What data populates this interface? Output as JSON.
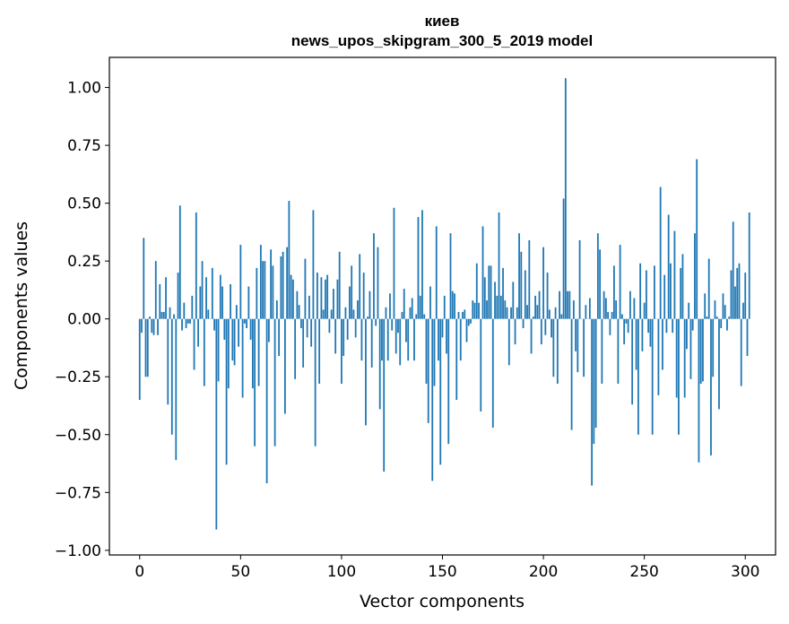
{
  "chart_data": {
    "type": "bar",
    "title": "киев",
    "subtitle": "news_upos_skipgram_300_5_2019 model",
    "xlabel": "Vector components",
    "ylabel": "Components values",
    "xlim": [
      -15,
      315
    ],
    "ylim": [
      -1.02,
      1.13
    ],
    "xticks": [
      0,
      50,
      100,
      150,
      200,
      250,
      300
    ],
    "xtick_labels": [
      "0",
      "50",
      "100",
      "150",
      "200",
      "250",
      "300"
    ],
    "yticks": [
      1.0,
      0.75,
      0.5,
      0.25,
      0.0,
      -0.25,
      -0.5,
      -0.75,
      -1.0
    ],
    "ytick_labels": [
      "1.00",
      "0.75",
      "0.50",
      "0.25",
      "0.00",
      "−0.25",
      "−0.50",
      "−0.75",
      "−1.00"
    ],
    "bar_color": "#1f77b4",
    "values": [
      -0.35,
      -0.06,
      0.35,
      -0.25,
      -0.25,
      0.01,
      -0.06,
      -0.07,
      0.25,
      -0.07,
      0.15,
      0.03,
      0.03,
      0.18,
      -0.37,
      0.05,
      -0.5,
      0.02,
      -0.61,
      0.2,
      0.49,
      -0.05,
      0.07,
      -0.04,
      -0.02,
      -0.02,
      0.1,
      -0.22,
      0.46,
      -0.12,
      0.14,
      0.25,
      -0.29,
      0.18,
      0.04,
      0.0,
      0.22,
      -0.05,
      -0.91,
      -0.27,
      0.19,
      0.14,
      -0.09,
      -0.63,
      -0.3,
      0.15,
      -0.18,
      -0.2,
      0.06,
      -0.12,
      0.32,
      -0.34,
      -0.02,
      -0.04,
      0.14,
      -0.09,
      -0.3,
      -0.55,
      0.22,
      -0.29,
      0.32,
      0.25,
      0.25,
      -0.71,
      -0.1,
      0.3,
      0.23,
      -0.55,
      0.08,
      -0.16,
      0.27,
      0.29,
      -0.41,
      0.31,
      0.51,
      0.19,
      0.17,
      -0.26,
      0.12,
      0.06,
      -0.04,
      -0.21,
      0.26,
      -0.08,
      0.1,
      -0.12,
      0.47,
      -0.55,
      0.2,
      -0.28,
      0.18,
      0.04,
      0.17,
      0.19,
      -0.06,
      0.04,
      0.13,
      -0.15,
      0.17,
      0.29,
      -0.28,
      -0.16,
      0.05,
      -0.09,
      0.14,
      0.23,
      0.04,
      -0.08,
      0.08,
      0.28,
      -0.18,
      0.2,
      -0.46,
      0.01,
      0.12,
      -0.21,
      0.37,
      -0.03,
      0.31,
      -0.39,
      -0.18,
      -0.66,
      0.05,
      -0.18,
      0.11,
      -0.05,
      0.48,
      -0.15,
      -0.06,
      -0.2,
      0.03,
      0.13,
      -0.1,
      -0.18,
      0.05,
      0.09,
      -0.18,
      0.02,
      0.44,
      0.1,
      0.47,
      0.02,
      -0.28,
      -0.45,
      0.14,
      -0.7,
      -0.29,
      0.4,
      -0.18,
      -0.63,
      -0.08,
      0.1,
      -0.15,
      -0.54,
      0.37,
      0.12,
      0.11,
      -0.35,
      0.03,
      -0.18,
      0.03,
      0.04,
      -0.1,
      -0.03,
      -0.02,
      0.08,
      0.07,
      0.24,
      0.07,
      -0.4,
      0.4,
      0.18,
      0.08,
      0.23,
      0.23,
      -0.47,
      0.16,
      0.1,
      0.46,
      0.1,
      0.22,
      0.08,
      0.05,
      -0.2,
      0.05,
      0.16,
      -0.11,
      0.05,
      0.37,
      0.29,
      -0.04,
      0.21,
      0.06,
      0.34,
      -0.15,
      0.01,
      0.1,
      0.06,
      0.12,
      -0.11,
      0.31,
      -0.07,
      0.2,
      0.04,
      -0.08,
      -0.25,
      0.05,
      -0.28,
      0.12,
      0.02,
      0.52,
      1.04,
      0.12,
      0.12,
      -0.48,
      0.08,
      -0.14,
      -0.23,
      0.34,
      0.0,
      -0.25,
      0.06,
      0.0,
      0.09,
      -0.72,
      -0.54,
      -0.47,
      0.37,
      0.3,
      -0.28,
      0.12,
      0.09,
      0.03,
      -0.07,
      0.03,
      0.23,
      0.08,
      -0.28,
      0.32,
      0.02,
      -0.11,
      -0.02,
      -0.06,
      0.12,
      -0.37,
      0.09,
      -0.22,
      -0.5,
      0.24,
      -0.14,
      0.07,
      0.21,
      -0.06,
      -0.12,
      -0.5,
      0.23,
      0.0,
      -0.33,
      0.57,
      -0.22,
      0.19,
      -0.06,
      0.45,
      0.24,
      -0.06,
      0.38,
      -0.34,
      -0.5,
      0.22,
      0.28,
      -0.34,
      -0.13,
      0.07,
      -0.26,
      -0.05,
      0.37,
      0.69,
      -0.62,
      -0.28,
      -0.27,
      0.11,
      0.01,
      0.26,
      -0.59,
      -0.25,
      0.08,
      0.01,
      -0.39,
      -0.04,
      0.11,
      0.06,
      -0.05,
      0.01,
      0.21,
      0.42,
      0.14,
      0.22,
      0.24,
      -0.29,
      0.07,
      0.2,
      -0.16,
      0.46
    ]
  }
}
